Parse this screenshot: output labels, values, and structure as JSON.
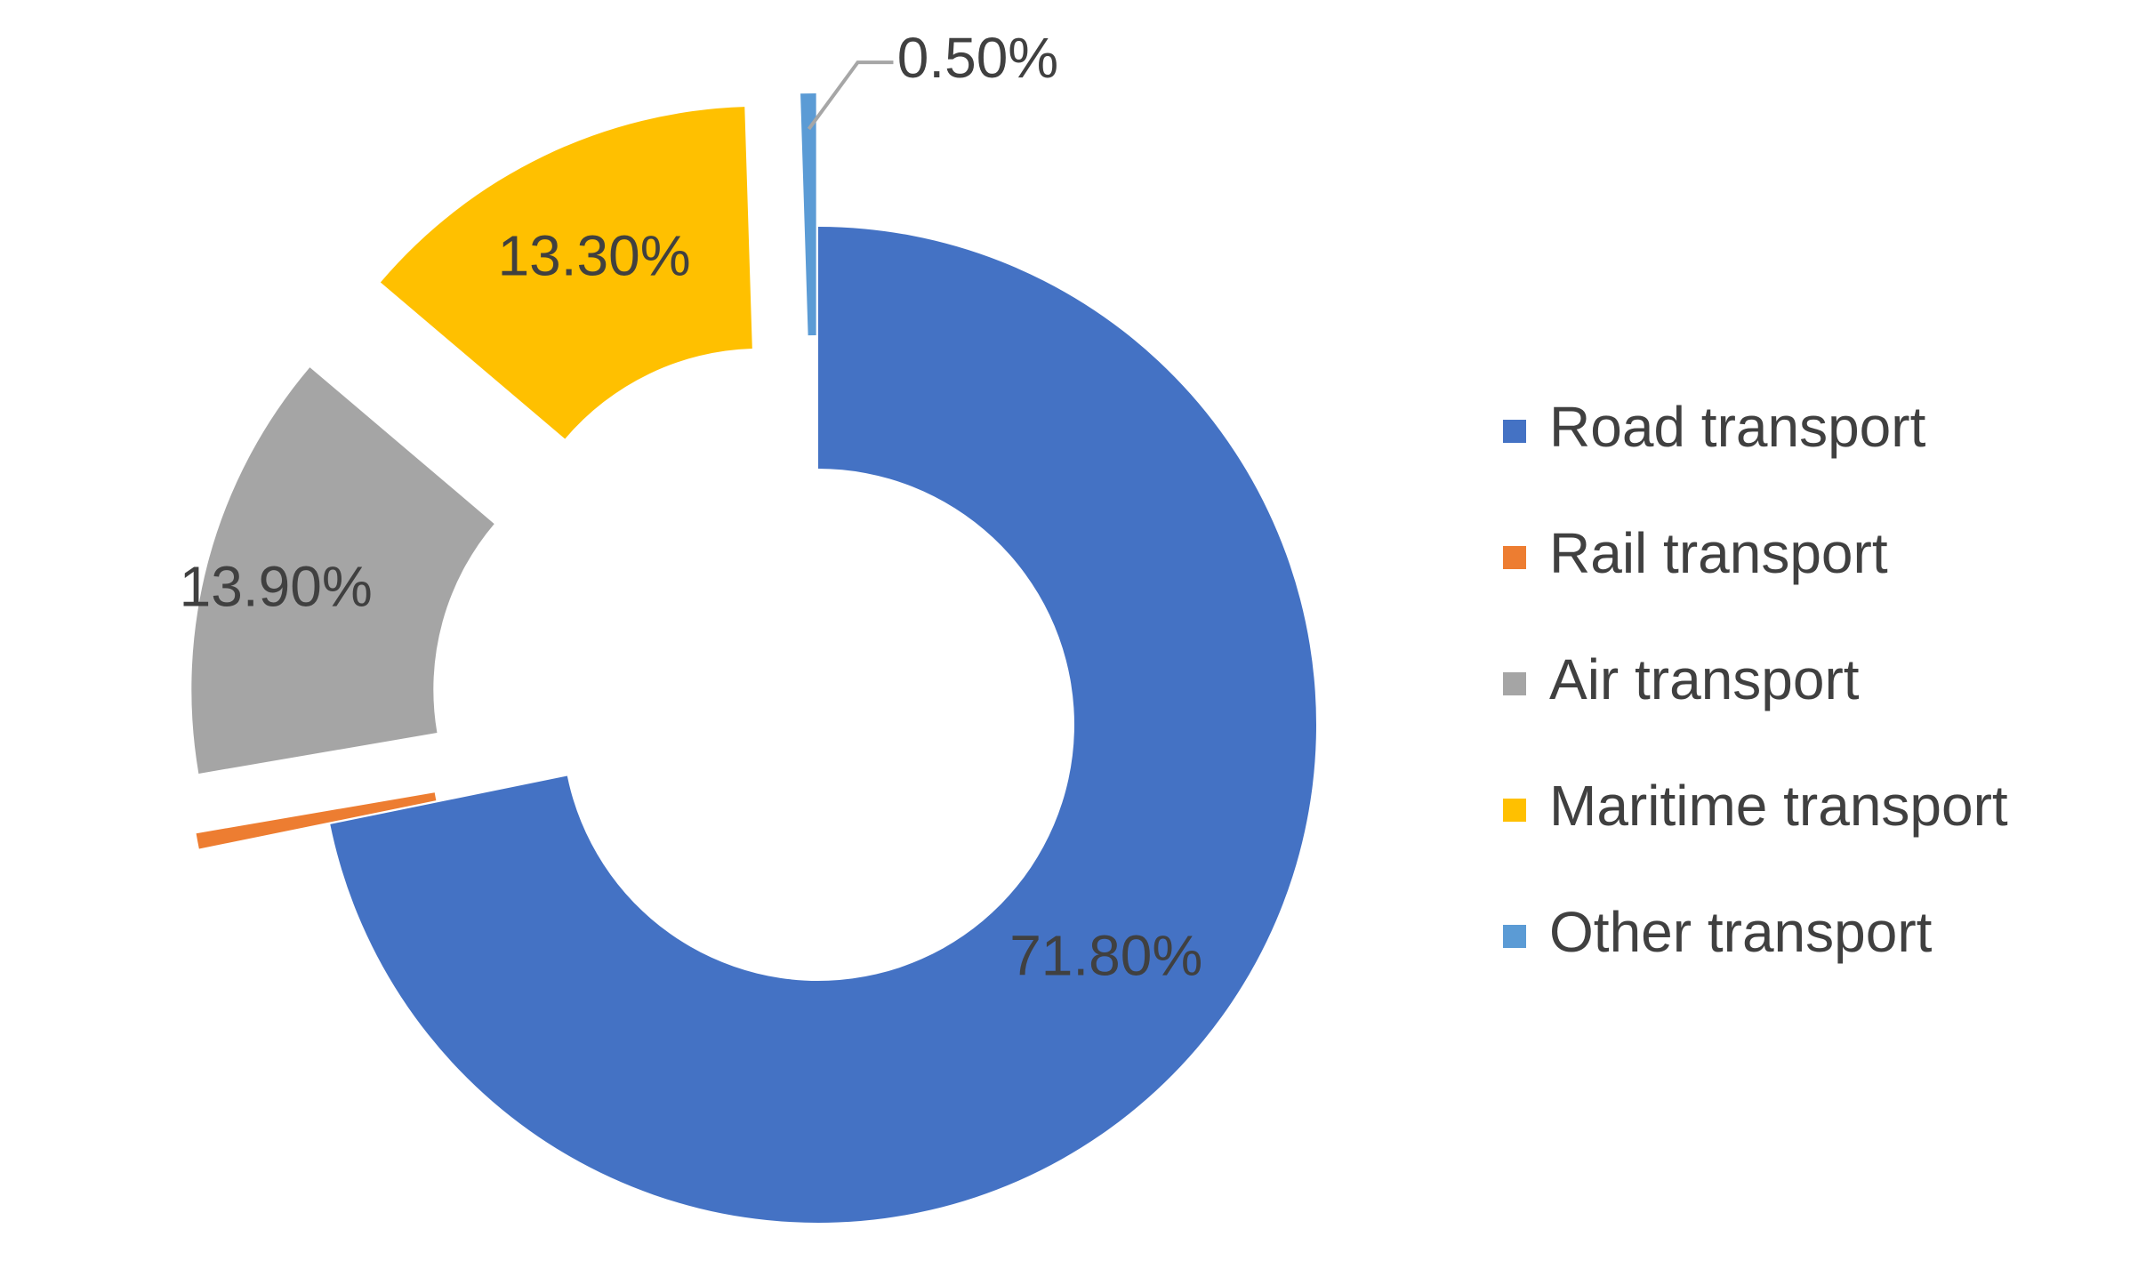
{
  "chart_data": {
    "type": "pie",
    "variant": "doughnut-exploded",
    "title": "",
    "categories": [
      "Road transport",
      "Rail transport",
      "Air transport",
      "Maritime transport",
      "Other transport"
    ],
    "values": [
      71.8,
      0.5,
      13.9,
      13.3,
      0.5
    ],
    "data_labels": [
      "71.80%",
      "0.50%",
      "13.90%",
      "13.30%",
      "0.50%"
    ],
    "colors": [
      "#4472C4",
      "#ED7D31",
      "#A5A5A5",
      "#FFC000",
      "#5B9BD5"
    ],
    "start_angle_deg": 0,
    "direction": "clockwise",
    "legend": {
      "position": "right",
      "entries": [
        "Road transport",
        "Rail transport",
        "Air transport",
        "Maritime transport",
        "Other transport"
      ]
    },
    "label_color": "#404040",
    "leader_line_color": "#A6A6A6"
  }
}
